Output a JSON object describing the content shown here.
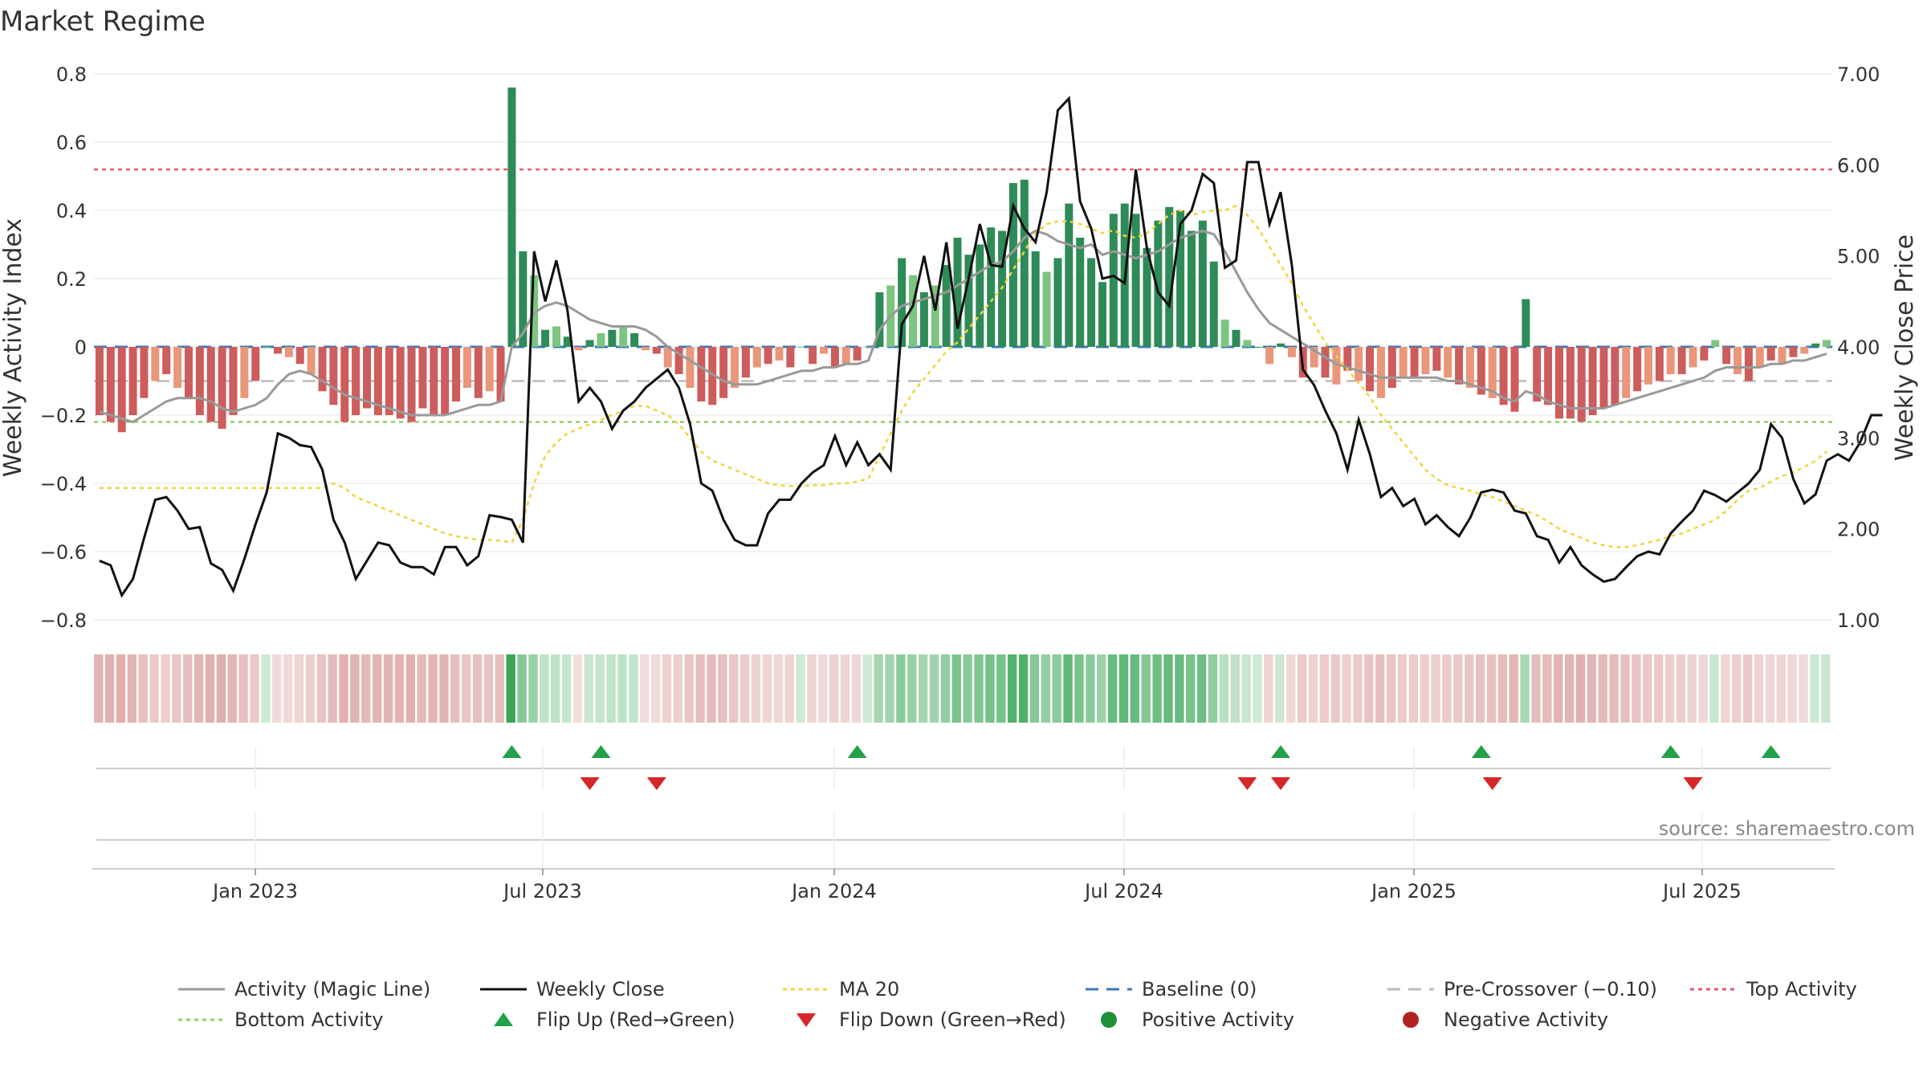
{
  "chart_data": {
    "type": "bar+line",
    "title": "Market Regime",
    "ylabel_left": "Weekly Activity Index",
    "ylabel_right": "Weekly Close Price",
    "ylim_left": [
      -0.8,
      0.8
    ],
    "ylim_right": [
      1.0,
      7.0
    ],
    "left_ticks": [
      "0.8",
      "0.6",
      "0.4",
      "0.2",
      "0",
      "−0.2",
      "−0.4",
      "−0.6",
      "−0.8"
    ],
    "right_ticks": [
      "7.00",
      "6.00",
      "5.00",
      "4.00",
      "3.00",
      "2.00",
      "1.00"
    ],
    "x_ticks": [
      "Jan 2023",
      "Jul 2023",
      "Jan 2024",
      "Jul 2024",
      "Jan 2025",
      "Jul 2025"
    ],
    "reference_lines": {
      "baseline": 0,
      "pre_crossover": -0.1,
      "top_activity": 0.52,
      "bottom_activity": -0.22
    },
    "activity_values": [
      -0.2,
      -0.22,
      -0.25,
      -0.2,
      -0.15,
      -0.1,
      -0.08,
      -0.12,
      -0.15,
      -0.2,
      -0.22,
      -0.24,
      -0.2,
      -0.15,
      -0.1,
      0,
      -0.02,
      -0.03,
      -0.05,
      -0.08,
      -0.13,
      -0.17,
      -0.22,
      -0.2,
      -0.18,
      -0.2,
      -0.2,
      -0.21,
      -0.22,
      -0.18,
      -0.2,
      -0.2,
      -0.16,
      -0.12,
      -0.15,
      -0.13,
      -0.16,
      0.76,
      0.28,
      0.21,
      0.05,
      0.06,
      0.03,
      -0.01,
      0.02,
      0.04,
      0.05,
      0.06,
      0.04,
      -0.01,
      -0.02,
      -0.06,
      -0.08,
      -0.12,
      -0.16,
      -0.17,
      -0.15,
      -0.12,
      -0.09,
      -0.06,
      -0.05,
      -0.04,
      -0.06,
      0,
      -0.05,
      -0.02,
      -0.06,
      -0.05,
      -0.04,
      0,
      0.16,
      0.18,
      0.26,
      0.21,
      0.16,
      0.18,
      0.24,
      0.32,
      0.27,
      0.3,
      0.35,
      0.34,
      0.48,
      0.49,
      0.28,
      0.22,
      0.26,
      0.42,
      0.32,
      0.26,
      0.19,
      0.39,
      0.42,
      0.39,
      0.29,
      0.37,
      0.41,
      0.4,
      0.34,
      0.37,
      0.25,
      0.08,
      0.05,
      0.02,
      0,
      -0.05,
      0.01,
      -0.03,
      -0.09,
      -0.06,
      -0.09,
      -0.11,
      -0.07,
      -0.1,
      -0.13,
      -0.15,
      -0.12,
      -0.09,
      -0.09,
      -0.08,
      -0.07,
      -0.09,
      -0.11,
      -0.12,
      -0.14,
      -0.15,
      -0.17,
      -0.19,
      0.14,
      -0.16,
      -0.17,
      -0.21,
      -0.21,
      -0.22,
      -0.2,
      -0.18,
      -0.17,
      -0.15,
      -0.13,
      -0.11,
      -0.1,
      -0.08,
      -0.08,
      -0.06,
      -0.04,
      0.02,
      -0.05,
      -0.08,
      -0.1,
      -0.06,
      -0.04,
      -0.05,
      -0.03,
      -0.02,
      0.01,
      0.02
    ],
    "weekly_close": [
      1.65,
      1.6,
      1.27,
      1.45,
      1.9,
      2.32,
      2.35,
      2.2,
      2.0,
      2.02,
      1.62,
      1.55,
      1.32,
      1.67,
      2.05,
      2.4,
      3.05,
      3.0,
      2.92,
      2.9,
      2.65,
      2.1,
      1.85,
      1.45,
      1.65,
      1.85,
      1.82,
      1.63,
      1.58,
      1.58,
      1.5,
      1.8,
      1.8,
      1.6,
      1.7,
      2.15,
      2.13,
      2.1,
      1.85,
      5.05,
      4.5,
      4.95,
      4.4,
      3.4,
      3.55,
      3.4,
      3.1,
      3.3,
      3.4,
      3.55,
      3.65,
      3.75,
      3.55,
      3.15,
      2.5,
      2.42,
      2.1,
      1.88,
      1.82,
      1.82,
      2.17,
      2.32,
      2.32,
      2.5,
      2.62,
      2.7,
      3.02,
      2.7,
      2.95,
      2.7,
      2.82,
      2.65,
      4.25,
      4.45,
      5.0,
      4.4,
      5.15,
      4.2,
      4.75,
      5.35,
      4.9,
      4.88,
      5.55,
      5.3,
      5.15,
      5.7,
      6.6,
      6.73,
      5.6,
      5.3,
      4.75,
      4.78,
      4.7,
      5.95,
      5.08,
      4.6,
      4.45,
      5.35,
      5.5,
      5.9,
      5.8,
      4.87,
      4.95,
      6.03,
      6.03,
      5.35,
      5.7,
      4.9,
      3.75,
      3.58,
      3.3,
      3.05,
      2.65,
      3.2,
      2.82,
      2.35,
      2.45,
      2.25,
      2.33,
      2.05,
      2.15,
      2.02,
      1.92,
      2.12,
      2.4,
      2.43,
      2.4,
      2.2,
      2.17,
      1.92,
      1.88,
      1.63,
      1.8,
      1.6,
      1.5,
      1.42,
      1.45,
      1.58,
      1.7,
      1.75,
      1.72,
      1.95,
      2.08,
      2.2,
      2.42,
      2.37,
      2.3,
      2.4,
      2.5,
      2.65,
      3.15,
      3.0,
      2.55,
      2.28,
      2.38,
      2.75,
      2.82,
      2.75,
      2.95,
      3.25,
      3.25
    ],
    "magic_line": [
      -0.19,
      -0.2,
      -0.21,
      -0.22,
      -0.2,
      -0.18,
      -0.16,
      -0.15,
      -0.15,
      -0.15,
      -0.16,
      -0.18,
      -0.19,
      -0.18,
      -0.17,
      -0.15,
      -0.11,
      -0.08,
      -0.07,
      -0.08,
      -0.1,
      -0.12,
      -0.14,
      -0.15,
      -0.16,
      -0.17,
      -0.18,
      -0.19,
      -0.2,
      -0.2,
      -0.2,
      -0.2,
      -0.19,
      -0.18,
      -0.17,
      -0.17,
      -0.16,
      0,
      0.04,
      0.1,
      0.12,
      0.13,
      0.12,
      0.1,
      0.08,
      0.07,
      0.06,
      0.06,
      0.06,
      0.05,
      0.03,
      0,
      -0.02,
      -0.04,
      -0.06,
      -0.08,
      -0.1,
      -0.11,
      -0.11,
      -0.11,
      -0.1,
      -0.09,
      -0.08,
      -0.07,
      -0.07,
      -0.06,
      -0.06,
      -0.05,
      -0.05,
      -0.04,
      0.05,
      0.09,
      0.12,
      0.13,
      0.14,
      0.15,
      0.16,
      0.18,
      0.2,
      0.22,
      0.24,
      0.25,
      0.28,
      0.32,
      0.34,
      0.33,
      0.31,
      0.3,
      0.29,
      0.3,
      0.27,
      0.28,
      0.27,
      0.26,
      0.27,
      0.28,
      0.3,
      0.32,
      0.33,
      0.34,
      0.33,
      0.28,
      0.22,
      0.16,
      0.11,
      0.07,
      0.05,
      0.03,
      0.01,
      -0.01,
      -0.03,
      -0.05,
      -0.06,
      -0.07,
      -0.08,
      -0.09,
      -0.09,
      -0.09,
      -0.09,
      -0.09,
      -0.09,
      -0.1,
      -0.1,
      -0.11,
      -0.12,
      -0.13,
      -0.15,
      -0.16,
      -0.13,
      -0.14,
      -0.16,
      -0.17,
      -0.18,
      -0.18,
      -0.18,
      -0.18,
      -0.17,
      -0.16,
      -0.15,
      -0.14,
      -0.13,
      -0.12,
      -0.11,
      -0.1,
      -0.09,
      -0.07,
      -0.06,
      -0.06,
      -0.06,
      -0.06,
      -0.05,
      -0.05,
      -0.04,
      -0.04,
      -0.03,
      -0.02
    ],
    "ma20": [
      2.45,
      2.45,
      2.45,
      2.45,
      2.45,
      2.45,
      2.45,
      2.45,
      2.45,
      2.45,
      2.45,
      2.45,
      2.45,
      2.45,
      2.45,
      2.45,
      2.45,
      2.45,
      2.45,
      2.45,
      2.45,
      2.5,
      2.45,
      2.35,
      2.3,
      2.25,
      2.2,
      2.15,
      2.1,
      2.05,
      2.0,
      1.95,
      1.92,
      1.9,
      1.88,
      1.88,
      1.87,
      1.85,
      2.1,
      2.5,
      2.8,
      2.95,
      3.05,
      3.1,
      3.15,
      3.2,
      3.25,
      3.3,
      3.35,
      3.35,
      3.3,
      3.25,
      3.15,
      3.0,
      2.85,
      2.75,
      2.7,
      2.65,
      2.6,
      2.55,
      2.5,
      2.48,
      2.47,
      2.47,
      2.48,
      2.48,
      2.5,
      2.5,
      2.52,
      2.55,
      2.8,
      3.05,
      3.3,
      3.5,
      3.65,
      3.8,
      3.95,
      4.05,
      4.2,
      4.35,
      4.5,
      4.65,
      4.85,
      5.05,
      5.25,
      5.35,
      5.38,
      5.38,
      5.35,
      5.3,
      5.25,
      5.28,
      5.22,
      5.2,
      5.25,
      5.35,
      5.45,
      5.5,
      5.45,
      5.48,
      5.5,
      5.5,
      5.55,
      5.45,
      5.3,
      5.1,
      4.9,
      4.7,
      4.45,
      4.25,
      4.05,
      3.9,
      3.75,
      3.6,
      3.45,
      3.25,
      3.1,
      2.95,
      2.8,
      2.65,
      2.55,
      2.48,
      2.45,
      2.42,
      2.38,
      2.35,
      2.3,
      2.25,
      2.2,
      2.15,
      2.08,
      2.0,
      1.95,
      1.9,
      1.85,
      1.82,
      1.8,
      1.8,
      1.82,
      1.85,
      1.88,
      1.92,
      1.95,
      2.0,
      2.05,
      2.1,
      2.2,
      2.32,
      2.42,
      2.45,
      2.52,
      2.58,
      2.62,
      2.68,
      2.75,
      2.85
    ],
    "regime_strip_values": [
      -0.2,
      -0.22,
      -0.25,
      -0.2,
      -0.15,
      -0.1,
      -0.08,
      -0.12,
      -0.15,
      -0.2,
      -0.22,
      -0.24,
      -0.2,
      -0.15,
      -0.1,
      0,
      -0.02,
      -0.03,
      -0.05,
      -0.08,
      -0.13,
      -0.17,
      -0.22,
      -0.2,
      -0.18,
      -0.2,
      -0.2,
      -0.21,
      -0.22,
      -0.18,
      -0.2,
      -0.2,
      -0.16,
      -0.12,
      -0.15,
      -0.13,
      -0.16,
      0.76,
      0.28,
      0.21,
      0.05,
      0.06,
      0.03,
      -0.01,
      0.02,
      0.04,
      0.05,
      0.06,
      0.04,
      -0.01,
      -0.02,
      -0.06,
      -0.08,
      -0.12,
      -0.16,
      -0.17,
      -0.15,
      -0.12,
      -0.09,
      -0.06,
      -0.05,
      -0.04,
      -0.06,
      0,
      -0.05,
      -0.02,
      -0.06,
      -0.05,
      -0.04,
      0,
      0.16,
      0.18,
      0.26,
      0.21,
      0.16,
      0.18,
      0.24,
      0.32,
      0.27,
      0.3,
      0.35,
      0.34,
      0.48,
      0.49,
      0.28,
      0.22,
      0.26,
      0.42,
      0.32,
      0.26,
      0.19,
      0.39,
      0.42,
      0.39,
      0.29,
      0.37,
      0.41,
      0.4,
      0.34,
      0.37,
      0.25,
      0.08,
      0.05,
      0.02,
      0,
      -0.05,
      0.01,
      -0.03,
      -0.09,
      -0.06,
      -0.09,
      -0.11,
      -0.07,
      -0.1,
      -0.13,
      -0.15,
      -0.12,
      -0.09,
      -0.09,
      -0.08,
      -0.07,
      -0.09,
      -0.11,
      -0.12,
      -0.14,
      -0.15,
      -0.17,
      -0.19,
      0.14,
      -0.16,
      -0.17,
      -0.21,
      -0.21,
      -0.22,
      -0.2,
      -0.18,
      -0.17,
      -0.15,
      -0.13,
      -0.11,
      -0.1,
      -0.08,
      -0.08,
      -0.06,
      -0.04,
      0.02,
      -0.05,
      -0.08,
      -0.1,
      -0.06,
      -0.04,
      -0.05,
      -0.03,
      -0.02,
      0.01,
      0.02
    ],
    "flip_up_weeks": [
      37,
      45,
      68,
      106,
      124,
      141,
      150
    ],
    "flip_down_weeks": [
      44,
      50,
      103,
      106,
      125,
      143
    ],
    "source": "source: sharemaestro.com",
    "legend": [
      {
        "label": "Activity (Magic Line)",
        "kind": "line",
        "color": "#999999",
        "dash": "solid"
      },
      {
        "label": "Weekly Close",
        "kind": "line",
        "color": "#111111",
        "dash": "solid"
      },
      {
        "label": "MA 20",
        "kind": "line",
        "color": "#f0d43a",
        "dash": "dot"
      },
      {
        "label": "Baseline (0)",
        "kind": "line",
        "color": "#3a78b5",
        "dash": "dash"
      },
      {
        "label": "Pre-Crossover (−0.10)",
        "kind": "line",
        "color": "#bbbbbb",
        "dash": "dash"
      },
      {
        "label": "Top Activity",
        "kind": "line",
        "color": "#e05a6e",
        "dash": "dot"
      },
      {
        "label": "Bottom Activity",
        "kind": "line",
        "color": "#8fd16a",
        "dash": "dot"
      },
      {
        "label": "Flip Up (Red→Green)",
        "kind": "tri-up",
        "color": "#22a04a"
      },
      {
        "label": "Flip Down (Green→Red)",
        "kind": "tri-down",
        "color": "#d62728"
      },
      {
        "label": "Positive Activity",
        "kind": "dot",
        "color": "#1f8f3a"
      },
      {
        "label": "Negative Activity",
        "kind": "dot",
        "color": "#b22222"
      }
    ],
    "colors": {
      "pos_strong": "#2e8b57",
      "pos_light": "#7cc47f",
      "neg_strong": "#cd5c5c",
      "neg_light": "#e9967a",
      "price": "#111111",
      "magic": "#999999",
      "ma": "#f0d43a",
      "baseline": "#3a78b5",
      "precross": "#bbbbbb",
      "top": "#e05a6e",
      "bottom": "#8fd16a"
    }
  }
}
